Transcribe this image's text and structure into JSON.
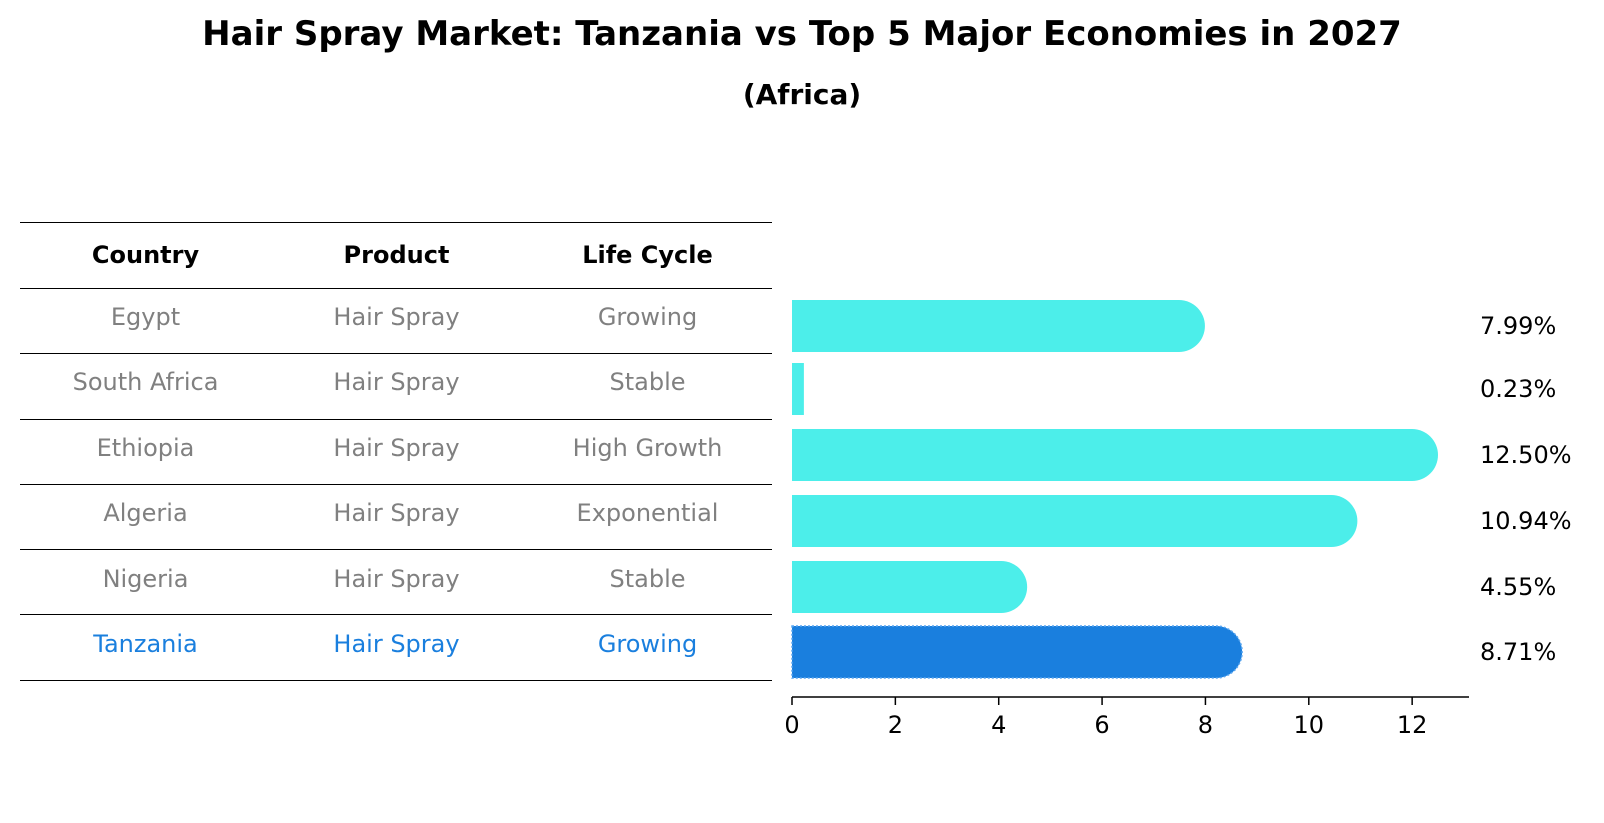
{
  "header": {
    "title": "Hair Spray Market: Tanzania vs Top 5 Major Economies in 2027",
    "subtitle": "(Africa)"
  },
  "table": {
    "columns": [
      "Country",
      "Product",
      "Life Cycle"
    ],
    "rows": [
      {
        "country": "Egypt",
        "product": "Hair Spray",
        "life_cycle": "Growing"
      },
      {
        "country": "South Africa",
        "product": "Hair Spray",
        "life_cycle": "Stable"
      },
      {
        "country": "Ethiopia",
        "product": "Hair Spray",
        "life_cycle": "High Growth"
      },
      {
        "country": "Algeria",
        "product": "Hair Spray",
        "life_cycle": "Exponential"
      },
      {
        "country": "Nigeria",
        "product": "Hair Spray",
        "life_cycle": "Stable"
      },
      {
        "country": "Tanzania",
        "product": "Hair Spray",
        "life_cycle": "Growing"
      }
    ]
  },
  "colors": {
    "bar": "#4ceeea",
    "highlight": "#1a7fde",
    "muted_text": "#808080"
  },
  "chart_data": {
    "type": "bar",
    "orientation": "horizontal",
    "categories": [
      "Egypt",
      "South Africa",
      "Ethiopia",
      "Algeria",
      "Nigeria",
      "Tanzania"
    ],
    "values": [
      7.99,
      0.23,
      12.5,
      10.94,
      4.55,
      8.71
    ],
    "value_labels": [
      "7.99%",
      "0.23%",
      "12.50%",
      "10.94%",
      "4.55%",
      "8.71%"
    ],
    "highlight_category": "Tanzania",
    "xlim": [
      0,
      13.1
    ],
    "xticks": [
      0,
      2,
      4,
      6,
      8,
      10,
      12
    ],
    "xtick_labels": [
      "0",
      "2",
      "4",
      "6",
      "8",
      "10",
      "12"
    ],
    "xlabel": "",
    "ylabel": ""
  }
}
